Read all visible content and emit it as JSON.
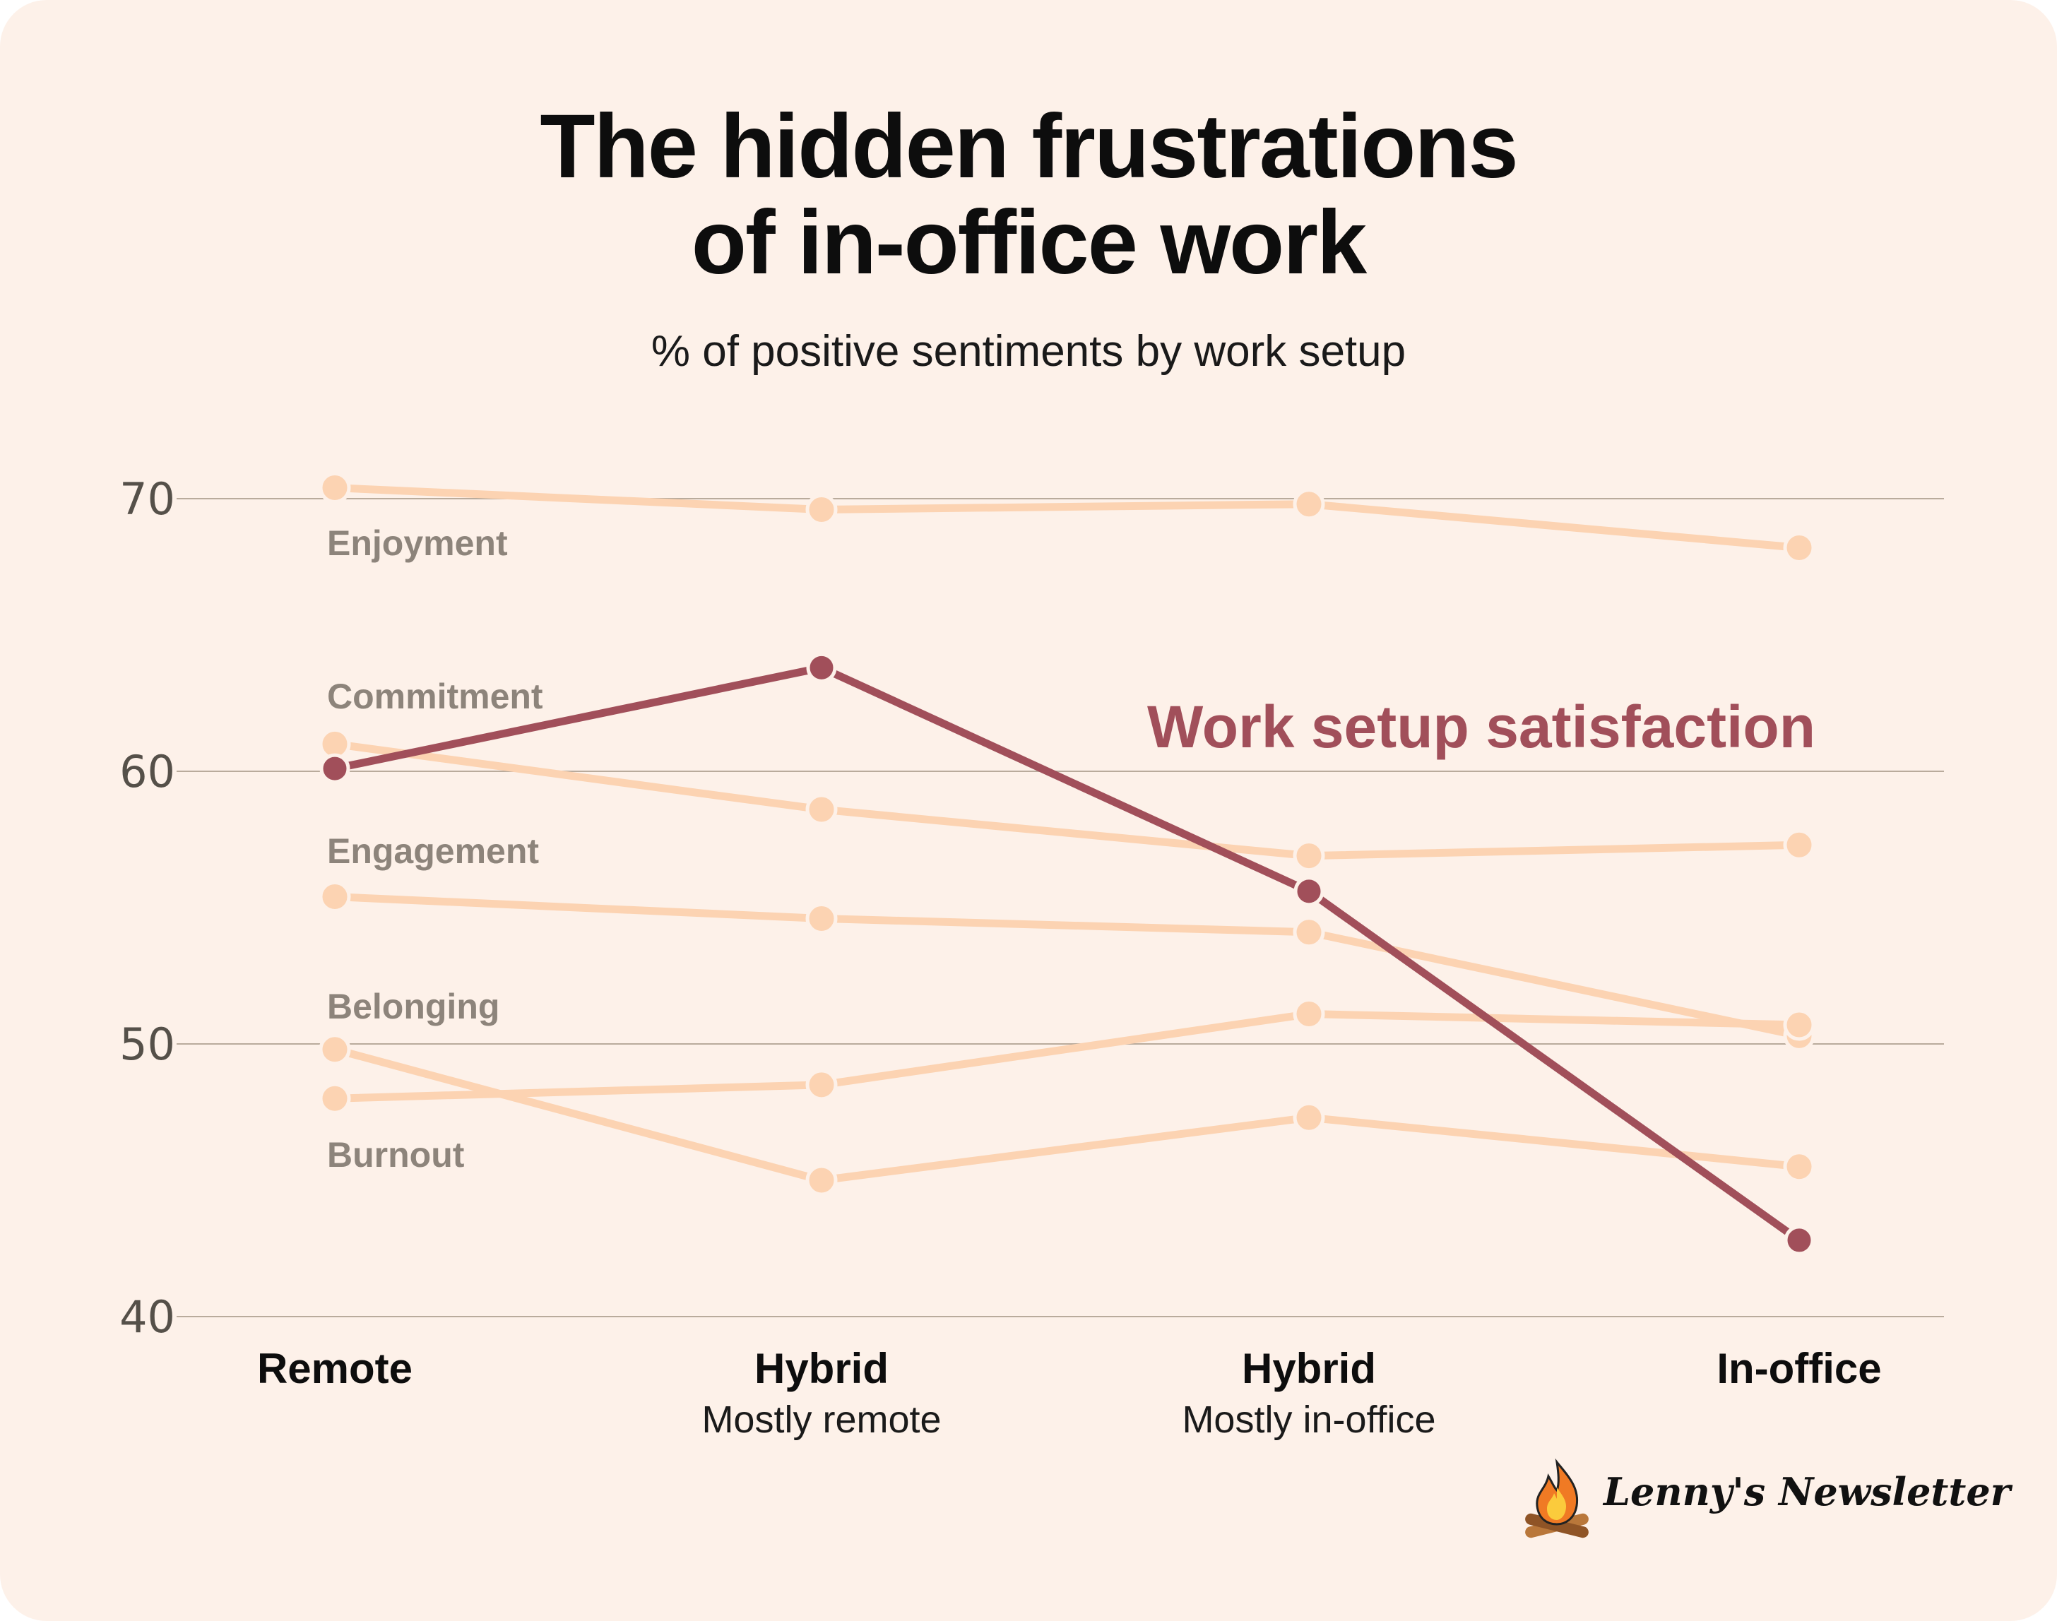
{
  "title_line1": "The hidden frustrations",
  "title_line2": "of in-office work",
  "subtitle": "% of positive sentiments by work setup",
  "brand": {
    "name": "Lenny's Newsletter",
    "icon": "campfire-icon"
  },
  "colors": {
    "background": "#fdf1e9",
    "muted_series": "#fcd3b2",
    "highlight_series": "#a14f5a",
    "gridline": "#b9ab9c"
  },
  "chart_data": {
    "type": "line",
    "title": "The hidden frustrations of in-office work",
    "subtitle": "% of positive sentiments by work setup",
    "categories": [
      {
        "main": "Remote",
        "sub": ""
      },
      {
        "main": "Hybrid",
        "sub": "Mostly remote"
      },
      {
        "main": "Hybrid",
        "sub": "Mostly in-office"
      },
      {
        "main": "In-office",
        "sub": ""
      }
    ],
    "ylim": [
      40,
      72
    ],
    "yticks": [
      40,
      50,
      60,
      70
    ],
    "grid": true,
    "series": [
      {
        "name": "Enjoyment",
        "values": [
          70.4,
          69.6,
          69.8,
          68.2
        ],
        "highlight": false
      },
      {
        "name": "Commitment",
        "values": [
          61.0,
          58.6,
          56.9,
          57.3
        ],
        "highlight": false
      },
      {
        "name": "Engagement",
        "values": [
          55.4,
          54.6,
          54.1,
          50.3
        ],
        "highlight": false
      },
      {
        "name": "Belonging",
        "values": [
          48.0,
          48.5,
          51.1,
          50.7
        ],
        "highlight": false
      },
      {
        "name": "Burnout",
        "values": [
          49.8,
          45.0,
          47.3,
          45.5
        ],
        "highlight": false
      },
      {
        "name": "Work setup satisfaction",
        "values": [
          60.1,
          63.8,
          55.6,
          42.8
        ],
        "highlight": true
      }
    ]
  }
}
